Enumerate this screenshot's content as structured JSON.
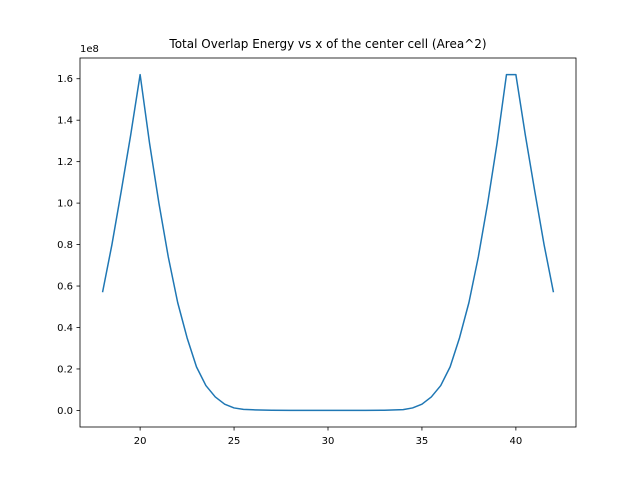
{
  "chart_data": {
    "type": "line",
    "title": "Total Overlap Energy vs x of the center cell (Area^2)",
    "xlabel": "",
    "ylabel": "",
    "y_offset_label": "1e8",
    "xlim": [
      16.8,
      43.2
    ],
    "ylim": [
      -0.08,
      1.7
    ],
    "x_ticks": [
      20,
      25,
      30,
      35,
      40
    ],
    "x_tick_labels": [
      "20",
      "25",
      "30",
      "35",
      "40"
    ],
    "y_ticks": [
      0.0,
      0.2,
      0.4,
      0.6,
      0.8,
      1.0,
      1.2,
      1.4,
      1.6
    ],
    "y_tick_labels": [
      "0.0",
      "0.2",
      "0.4",
      "0.6",
      "0.8",
      "1.0",
      "1.2",
      "1.4",
      "1.6"
    ],
    "grid": false,
    "legend": false,
    "series": [
      {
        "color": "#1f77b4",
        "x": [
          18,
          18.5,
          19,
          19.5,
          20,
          20.5,
          21,
          21.5,
          22,
          22.5,
          23,
          23.5,
          24,
          24.5,
          25,
          25.5,
          26,
          27,
          28,
          29,
          30,
          31,
          32,
          33,
          34,
          34.5,
          35,
          35.5,
          36,
          36.5,
          37,
          37.5,
          38,
          38.5,
          39,
          39.5,
          40,
          40.5,
          41,
          41.5,
          42
        ],
        "y": [
          0.57,
          0.8,
          1.06,
          1.33,
          1.62,
          1.29,
          1.0,
          0.74,
          0.52,
          0.35,
          0.21,
          0.12,
          0.065,
          0.03,
          0.012,
          0.005,
          0.003,
          0.001,
          0.0003,
          0.0001,
          0.0,
          0.0001,
          0.0003,
          0.001,
          0.004,
          0.012,
          0.03,
          0.065,
          0.12,
          0.21,
          0.35,
          0.52,
          0.74,
          1.0,
          1.29,
          1.62,
          1.62,
          1.33,
          1.06,
          0.8,
          0.57
        ]
      }
    ]
  }
}
